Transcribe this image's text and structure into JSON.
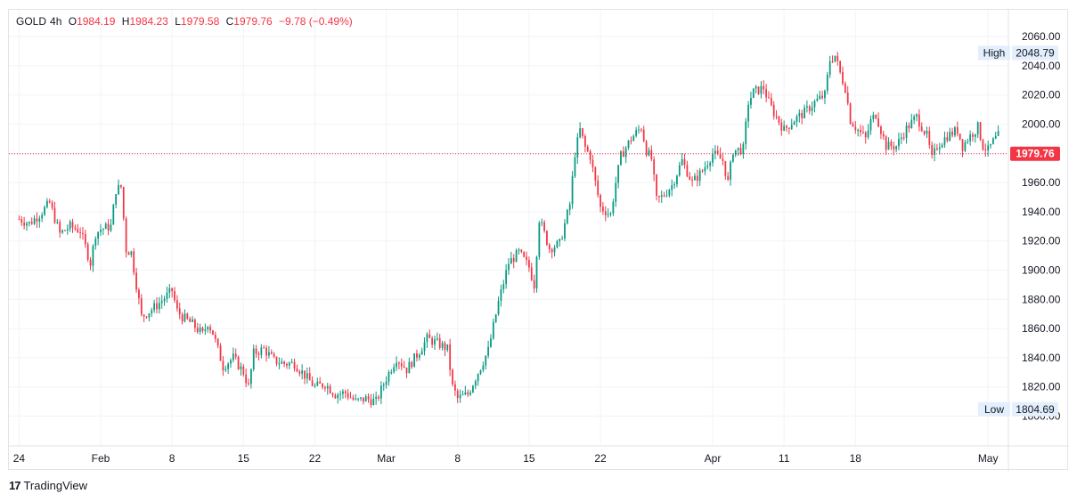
{
  "header": {
    "symbol": "GOLD",
    "interval": "4h",
    "open_label": "O",
    "open": "1984.19",
    "high_label": "H",
    "high": "1984.23",
    "low_label": "L",
    "low": "1979.58",
    "close_label": "C",
    "close": "1979.76",
    "change": "−9.78 (−0.49%)"
  },
  "brand": {
    "logo": "17",
    "name": "TradingView",
    "logo_icon": "tradingview-logo-icon"
  },
  "colors": {
    "up": "#089981",
    "down": "#f23645",
    "grid": "#f0f3fa",
    "axis_text": "#131722",
    "marker_bg": "#e3effd"
  },
  "chart_data": {
    "type": "candlestick",
    "ylim": [
      1790,
      2068
    ],
    "y_ticks": [
      "1800.00",
      "1820.00",
      "1840.00",
      "1860.00",
      "1880.00",
      "1900.00",
      "1920.00",
      "1940.00",
      "1960.00",
      "1980.00",
      "2000.00",
      "2020.00",
      "2040.00",
      "2060.00"
    ],
    "x_ticks": [
      {
        "label": "24",
        "day": -1
      },
      {
        "label": "Feb",
        "day": 7
      },
      {
        "label": "8",
        "day": 14
      },
      {
        "label": "15",
        "day": 21
      },
      {
        "label": "22",
        "day": 28
      },
      {
        "label": "Mar",
        "day": 35
      },
      {
        "label": "8",
        "day": 42
      },
      {
        "label": "15",
        "day": 49
      },
      {
        "label": "22",
        "day": 56
      },
      {
        "label": "Apr",
        "day": 67
      },
      {
        "label": "11",
        "day": 74
      },
      {
        "label": "18",
        "day": 81
      },
      {
        "label": "May",
        "day": 94
      }
    ],
    "last_price": {
      "value": 1979.76,
      "label": "1979.76"
    },
    "high_marker": {
      "label": "High",
      "value": 2048.79,
      "text": "2048.79"
    },
    "low_marker": {
      "label": "Low",
      "value": 1804.69,
      "text": "1804.69"
    },
    "day_step": 0.25,
    "start_day": -1,
    "anchors": [
      [
        -1,
        1935
      ],
      [
        0,
        1932
      ],
      [
        1,
        1938
      ],
      [
        2,
        1946
      ],
      [
        3,
        1925
      ],
      [
        4,
        1930
      ],
      [
        5,
        1927
      ],
      [
        6,
        1905
      ],
      [
        6.5,
        1925
      ],
      [
        7,
        1928
      ],
      [
        8,
        1930
      ],
      [
        8.5,
        1955
      ],
      [
        9,
        1957
      ],
      [
        9.5,
        1914
      ],
      [
        10,
        1912
      ],
      [
        11,
        1868
      ],
      [
        12,
        1873
      ],
      [
        13,
        1879
      ],
      [
        14,
        1886
      ],
      [
        14.5,
        1872
      ],
      [
        15,
        1868
      ],
      [
        16,
        1863
      ],
      [
        17,
        1856
      ],
      [
        17.5,
        1864
      ],
      [
        18,
        1857
      ],
      [
        19,
        1834
      ],
      [
        20,
        1840
      ],
      [
        21,
        1830
      ],
      [
        21.5,
        1820
      ],
      [
        22,
        1843
      ],
      [
        23,
        1846
      ],
      [
        24,
        1838
      ],
      [
        25,
        1836
      ],
      [
        26,
        1836
      ],
      [
        27,
        1828
      ],
      [
        28,
        1820
      ],
      [
        29,
        1822
      ],
      [
        30,
        1815
      ],
      [
        31,
        1816
      ],
      [
        32,
        1810
      ],
      [
        33,
        1812
      ],
      [
        34,
        1810
      ],
      [
        35,
        1826
      ],
      [
        36,
        1840
      ],
      [
        37,
        1832
      ],
      [
        38,
        1842
      ],
      [
        39,
        1853
      ],
      [
        40,
        1850
      ],
      [
        41,
        1846
      ],
      [
        41.5,
        1820
      ],
      [
        42,
        1812
      ],
      [
        43,
        1815
      ],
      [
        44,
        1830
      ],
      [
        45,
        1845
      ],
      [
        46,
        1878
      ],
      [
        47,
        1905
      ],
      [
        48,
        1912
      ],
      [
        49,
        1902
      ],
      [
        49.5,
        1890
      ],
      [
        50,
        1935
      ],
      [
        51,
        1915
      ],
      [
        52,
        1918
      ],
      [
        53,
        1945
      ],
      [
        53.5,
        1980
      ],
      [
        54,
        1996
      ],
      [
        54.5,
        1984
      ],
      [
        55,
        1978
      ],
      [
        55.5,
        1960
      ],
      [
        56,
        1943
      ],
      [
        57,
        1938
      ],
      [
        57.5,
        1960
      ],
      [
        58,
        1978
      ],
      [
        59,
        1990
      ],
      [
        60,
        1998
      ],
      [
        60.5,
        1982
      ],
      [
        61,
        1976
      ],
      [
        61.5,
        1948
      ],
      [
        62,
        1950
      ],
      [
        63,
        1958
      ],
      [
        64,
        1975
      ],
      [
        65,
        1960
      ],
      [
        66,
        1968
      ],
      [
        67,
        1980
      ],
      [
        68,
        1975
      ],
      [
        68.5,
        1960
      ],
      [
        69,
        1982
      ],
      [
        70,
        1983
      ],
      [
        70.5,
        2015
      ],
      [
        71,
        2022
      ],
      [
        72,
        2025
      ],
      [
        72.5,
        2015
      ],
      [
        73,
        2008
      ],
      [
        74,
        1996
      ],
      [
        75,
        2003
      ],
      [
        76,
        2008
      ],
      [
        77,
        2015
      ],
      [
        78,
        2020
      ],
      [
        78.5,
        2044
      ],
      [
        79,
        2047
      ],
      [
        79.5,
        2035
      ],
      [
        80,
        2025
      ],
      [
        80.5,
        2003
      ],
      [
        81,
        1998
      ],
      [
        82,
        1990
      ],
      [
        82.5,
        2002
      ],
      [
        83,
        2007
      ],
      [
        84,
        1985
      ],
      [
        85,
        1985
      ],
      [
        86,
        1997
      ],
      [
        87,
        2005
      ],
      [
        88,
        1992
      ],
      [
        88.5,
        1976
      ],
      [
        89,
        1985
      ],
      [
        90,
        1992
      ],
      [
        91,
        1996
      ],
      [
        91.5,
        1985
      ],
      [
        92,
        1990
      ],
      [
        93,
        1998
      ],
      [
        93.5,
        1985
      ],
      [
        94,
        1982
      ],
      [
        94.5,
        1988
      ],
      [
        95,
        1992
      ],
      [
        95.2,
        1980
      ]
    ]
  }
}
